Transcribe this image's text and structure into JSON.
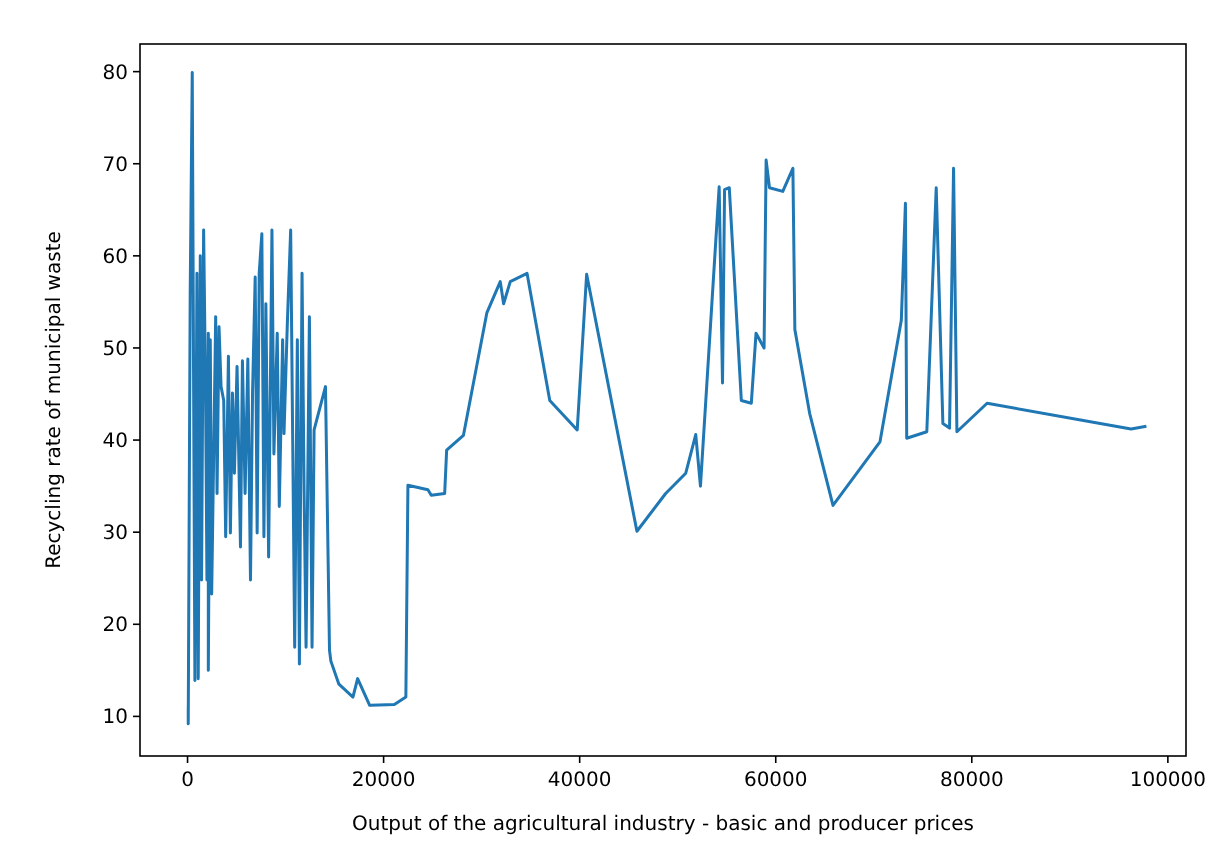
{
  "chart_data": {
    "type": "line",
    "xlabel": "Output of the agricultural industry - basic and producer prices",
    "ylabel": "Recycling rate of municipal waste",
    "xlim": [
      -4850,
      101850
    ],
    "ylim": [
      5.7,
      83
    ],
    "xticks": [
      0,
      20000,
      40000,
      60000,
      80000,
      100000
    ],
    "yticks": [
      10,
      20,
      30,
      40,
      50,
      60,
      70,
      80
    ],
    "grid": false,
    "marker": "none",
    "line_style": "solid",
    "x": [
      70,
      70,
      270,
      480,
      750,
      960,
      1090,
      1300,
      1430,
      1640,
      1840,
      1980,
      2120,
      2120,
      2320,
      2460,
      2870,
      3010,
      3210,
      3420,
      3690,
      3890,
      4170,
      4370,
      4580,
      4780,
      5050,
      5400,
      5600,
      5870,
      6150,
      6420,
      6630,
      6900,
      7100,
      7310,
      7580,
      7790,
      7990,
      8270,
      8610,
      8810,
      9150,
      9360,
      9700,
      9840,
      10180,
      10520,
      10720,
      10930,
      11200,
      11410,
      11680,
      11890,
      12090,
      12430,
      12700,
      12910,
      14070,
      14480,
      14620,
      15440,
      16870,
      17350,
      18580,
      18700,
      21100,
      22270,
      22480,
      24520,
      24860,
      26230,
      26430,
      28140,
      30530,
      31900,
      32240,
      32920,
      34630,
      36950,
      39750,
      40710,
      45840,
      48770,
      50820,
      51840,
      52320,
      54230,
      54570,
      54780,
      55260,
      56490,
      57510,
      57990,
      58810,
      59020,
      59360,
      60720,
      61750,
      61950,
      63460,
      65840,
      70630,
      72810,
      73230,
      73360,
      75410,
      76370,
      77050,
      77730,
      78140,
      78480,
      81560,
      96250,
      97810
    ],
    "series": [
      {
        "color": "#1f77b4",
        "values": [
          11.0,
          9.2,
          55.9,
          79.9,
          13.9,
          58.1,
          14.1,
          60.0,
          24.8,
          62.8,
          45.1,
          24.8,
          51.6,
          15.0,
          50.9,
          23.3,
          53.4,
          34.2,
          52.3,
          45.8,
          44.3,
          29.5,
          49.1,
          29.9,
          45.1,
          36.4,
          48.0,
          28.4,
          48.6,
          34.2,
          48.8,
          24.8,
          45.1,
          57.7,
          29.9,
          58.1,
          62.4,
          29.5,
          54.8,
          27.3,
          62.8,
          38.5,
          51.6,
          32.8,
          50.9,
          40.7,
          52.7,
          62.8,
          40.7,
          17.5,
          50.9,
          15.7,
          58.1,
          34.2,
          17.5,
          53.4,
          17.5,
          41.1,
          45.8,
          17.2,
          16.0,
          13.5,
          12.1,
          14.1,
          11.2,
          11.2,
          11.3,
          12.1,
          35.1,
          34.6,
          34.0,
          34.2,
          38.9,
          40.5,
          53.8,
          57.2,
          54.8,
          57.2,
          58.1,
          44.3,
          41.1,
          58.0,
          30.1,
          34.2,
          36.4,
          40.6,
          35.0,
          67.5,
          46.2,
          67.2,
          67.4,
          44.3,
          44.0,
          51.6,
          50.0,
          70.4,
          67.4,
          67.0,
          69.5,
          52.0,
          42.9,
          32.9,
          39.8,
          53.0,
          65.7,
          40.2,
          40.9,
          67.4,
          41.8,
          41.3,
          69.5,
          40.9,
          44.0,
          41.2,
          41.5
        ]
      }
    ]
  }
}
